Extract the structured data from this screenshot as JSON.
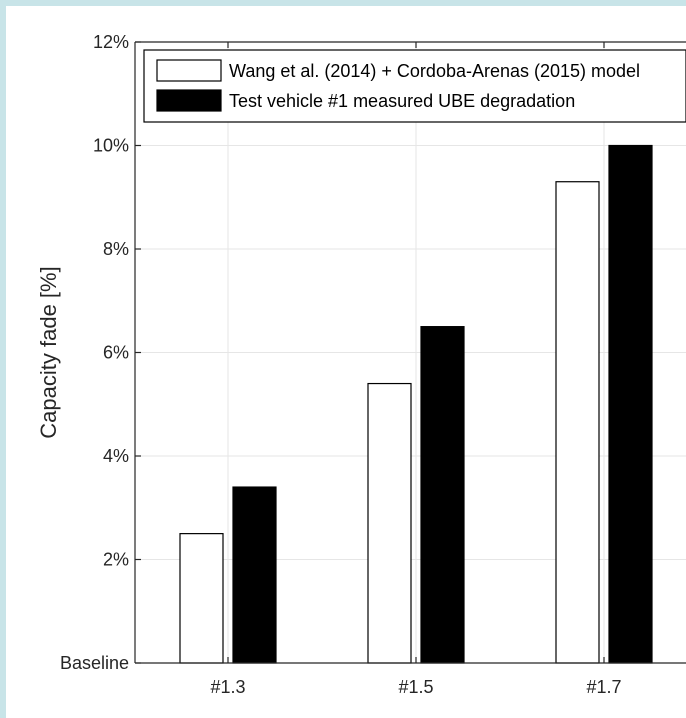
{
  "chart_data": {
    "type": "bar",
    "title": "",
    "xlabel": "",
    "ylabel": "Capacity fade [%]",
    "categories": [
      "#1.3",
      "#1.5",
      "#1.7"
    ],
    "series": [
      {
        "name": "Wang et al. (2014) + Cordoba-Arenas (2015) model",
        "values": [
          2.5,
          5.4,
          9.3
        ],
        "fill": "#ffffff"
      },
      {
        "name": "Test vehicle #1 measured UBE degradation",
        "values": [
          3.4,
          6.5,
          10.0
        ],
        "fill": "#000000"
      }
    ],
    "ylim": [
      0,
      12
    ],
    "yticks": [
      0,
      2,
      4,
      6,
      8,
      10,
      12
    ],
    "ytick_labels": [
      "Baseline",
      "2%",
      "4%",
      "6%",
      "8%",
      "10%",
      "12%"
    ],
    "grid": true,
    "legend": "top"
  },
  "colors": {
    "axis": "#262626",
    "grid": "#e6e6e6",
    "background": "#ffffff",
    "page_border": "#c8e4e8"
  }
}
